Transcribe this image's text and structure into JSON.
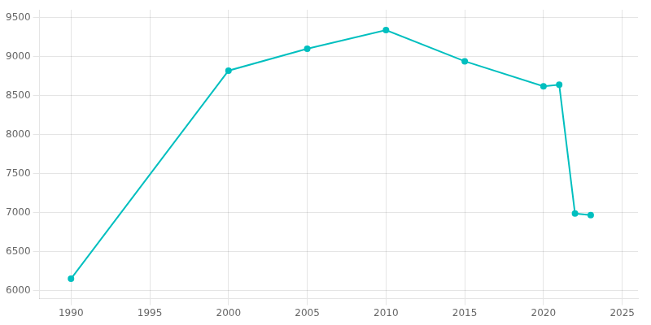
{
  "chart_data": {
    "type": "line",
    "x": [
      1990,
      2000,
      2005,
      2010,
      2015,
      2020,
      2021,
      2022,
      2023
    ],
    "values": [
      6155,
      8820,
      9100,
      9340,
      8940,
      8620,
      8640,
      6990,
      6970
    ],
    "color": "#00BFBF",
    "marker": "circle",
    "xlim": [
      1988,
      2026
    ],
    "ylim": [
      5900,
      9600
    ],
    "xticks": [
      1990,
      1995,
      2000,
      2005,
      2010,
      2015,
      2020,
      2025
    ],
    "yticks": [
      6000,
      6500,
      7000,
      7500,
      8000,
      8500,
      9000,
      9500
    ],
    "grid": true
  }
}
